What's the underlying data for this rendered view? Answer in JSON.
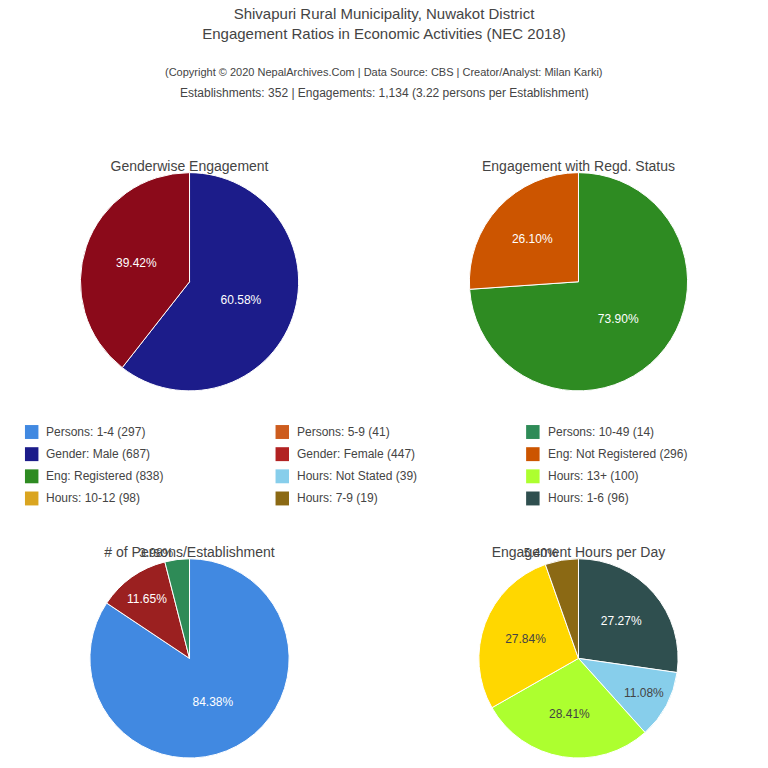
{
  "title": "Shivapuri Rural Municipality, Nuwakot District\nEngagement Ratios in Economic Activities (NEC 2018)",
  "subtitle": "(Copyright © 2020 NepalArchives.Com | Data Source: CBS | Creator/Analyst: Milan Karki)",
  "annotations": [
    "Establishments: 352 | Engagements: 1,134 (3.22 persons per Establishment)"
  ],
  "legend_items": [
    {
      "label": "Persons: 1-4 (297)",
      "color": "#4189E1"
    },
    {
      "label": "Persons: 5-9 (41)",
      "color": "#CD5C1E"
    },
    {
      "label": "Persons: 10-49 (14)",
      "color": "#2E8B57"
    },
    {
      "label": "Gender: Male (687)",
      "color": "#1C1C8A"
    },
    {
      "label": "Gender: Female (447)",
      "color": "#B22222"
    },
    {
      "label": "Eng: Not Registered (296)",
      "color": "#CC5500"
    },
    {
      "label": "Eng: Registered (838)",
      "color": "#2E8B22"
    },
    {
      "label": "Hours: Not Stated (39)",
      "color": "#87CEEB"
    },
    {
      "label": "Hours: 13+ (100)",
      "color": "#ADFF2F"
    },
    {
      "label": "Hours: 10-12 (98)",
      "color": "#DAA520"
    },
    {
      "label": "Hours: 7-9 (19)",
      "color": "#8B6914"
    },
    {
      "label": "Hours: 1-6 (96)",
      "color": "#2F4F4F"
    }
  ],
  "chart_data": [
    {
      "type": "pie",
      "title": "Genderwise Engagement",
      "values": [
        60.58,
        39.42
      ],
      "value_labels": [
        "60.58%",
        "39.42%"
      ],
      "colors": [
        "#1C1C8A",
        "#8B0A1A"
      ]
    },
    {
      "type": "pie",
      "title": "Engagement with Regd. Status",
      "values": [
        73.9,
        26.1
      ],
      "value_labels": [
        "73.90%",
        "26.10%"
      ],
      "colors": [
        "#2E8B22",
        "#CC5500"
      ]
    },
    {
      "type": "pie",
      "title": "# of Persons/Establishment",
      "values": [
        84.38,
        11.65,
        3.98
      ],
      "value_labels": [
        "84.38%",
        "11.65%",
        "3.98%"
      ],
      "colors": [
        "#4189E1",
        "#9B2020",
        "#2E8B57"
      ]
    },
    {
      "type": "pie",
      "title": "Engagement Hours per Day",
      "values": [
        27.27,
        11.08,
        28.41,
        27.84,
        5.4
      ],
      "value_labels": [
        "27.27%",
        "11.08%",
        "28.41%",
        "27.84%",
        "5.40%"
      ],
      "colors": [
        "#2F4F4F",
        "#87CEEB",
        "#ADFF2F",
        "#FFD700",
        "#8B6914"
      ]
    }
  ]
}
